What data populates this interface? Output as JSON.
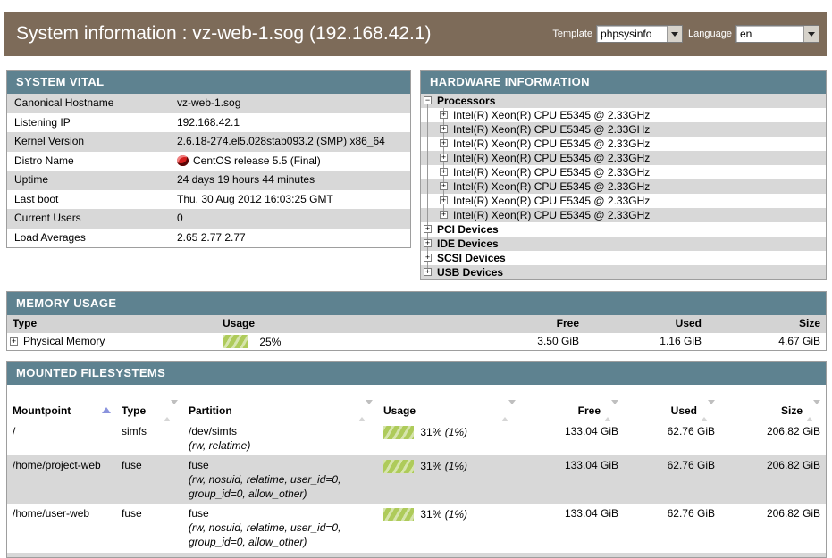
{
  "header": {
    "title": "System information : vz-web-1.sog (192.168.42.1)",
    "template_label": "Template",
    "template_value": "phpsysinfo",
    "language_label": "Language",
    "language_value": "en"
  },
  "system_vital": {
    "title": "SYSTEM VITAL",
    "rows": [
      {
        "label": "Canonical Hostname",
        "value": "vz-web-1.sog"
      },
      {
        "label": "Listening IP",
        "value": "192.168.42.1"
      },
      {
        "label": "Kernel Version",
        "value": "2.6.18-274.el5.028stab093.2 (SMP) x86_64"
      },
      {
        "label": "Distro Name",
        "value": "CentOS release 5.5 (Final)",
        "icon": "centos-icon"
      },
      {
        "label": "Uptime",
        "value": "24 days 19 hours 44 minutes"
      },
      {
        "label": "Last boot",
        "value": "Thu, 30 Aug 2012 16:03:25 GMT"
      },
      {
        "label": "Current Users",
        "value": "0"
      },
      {
        "label": "Load Averages",
        "value": "2.65 2.77 2.77"
      }
    ]
  },
  "hardware": {
    "title": "HARDWARE INFORMATION",
    "tree": [
      {
        "label": "Processors",
        "state": "expanded",
        "symbol": "−",
        "depth": 0
      },
      {
        "label": "Intel(R) Xeon(R) CPU E5345 @ 2.33GHz",
        "state": "collapsed",
        "symbol": "+",
        "depth": 1
      },
      {
        "label": "Intel(R) Xeon(R) CPU E5345 @ 2.33GHz",
        "state": "collapsed",
        "symbol": "+",
        "depth": 1
      },
      {
        "label": "Intel(R) Xeon(R) CPU E5345 @ 2.33GHz",
        "state": "collapsed",
        "symbol": "+",
        "depth": 1
      },
      {
        "label": "Intel(R) Xeon(R) CPU E5345 @ 2.33GHz",
        "state": "collapsed",
        "symbol": "+",
        "depth": 1
      },
      {
        "label": "Intel(R) Xeon(R) CPU E5345 @ 2.33GHz",
        "state": "collapsed",
        "symbol": "+",
        "depth": 1
      },
      {
        "label": "Intel(R) Xeon(R) CPU E5345 @ 2.33GHz",
        "state": "collapsed",
        "symbol": "+",
        "depth": 1
      },
      {
        "label": "Intel(R) Xeon(R) CPU E5345 @ 2.33GHz",
        "state": "collapsed",
        "symbol": "+",
        "depth": 1
      },
      {
        "label": "Intel(R) Xeon(R) CPU E5345 @ 2.33GHz",
        "state": "collapsed",
        "symbol": "+",
        "depth": 1
      },
      {
        "label": "PCI Devices",
        "state": "collapsed",
        "symbol": "+",
        "depth": 0
      },
      {
        "label": "IDE Devices",
        "state": "collapsed",
        "symbol": "+",
        "depth": 0
      },
      {
        "label": "SCSI Devices",
        "state": "collapsed",
        "symbol": "+",
        "depth": 0
      },
      {
        "label": "USB Devices",
        "state": "collapsed",
        "symbol": "+",
        "depth": 0
      }
    ]
  },
  "memory": {
    "title": "MEMORY USAGE",
    "columns": {
      "type": "Type",
      "usage": "Usage",
      "free": "Free",
      "used": "Used",
      "size": "Size"
    },
    "rows": [
      {
        "type": "Physical Memory",
        "symbol": "+",
        "usage_percent": 25,
        "usage_label": "25%",
        "free": "3.50 GiB",
        "used": "1.16 GiB",
        "size": "4.67 GiB"
      }
    ]
  },
  "filesystems": {
    "title": "MOUNTED FILESYSTEMS",
    "columns": {
      "mountpoint": "Mountpoint",
      "type": "Type",
      "partition": "Partition",
      "usage": "Usage",
      "free": "Free",
      "used": "Used",
      "size": "Size"
    },
    "sort": {
      "column": "Mountpoint",
      "direction": "ascending"
    },
    "rows": [
      {
        "mountpoint": "/",
        "type": "simfs",
        "partition": "/dev/simfs",
        "options": "(rw, relatime)",
        "usage_percent": 31,
        "usage_label": "31%",
        "usage_sub": "(1%)",
        "free": "133.04 GiB",
        "used": "62.76 GiB",
        "size": "206.82 GiB"
      },
      {
        "mountpoint": "/home/project-web",
        "type": "fuse",
        "partition": "fuse",
        "options": "(rw, nosuid, relatime, user_id=0, group_id=0, allow_other)",
        "usage_percent": 31,
        "usage_label": "31%",
        "usage_sub": "(1%)",
        "free": "133.04 GiB",
        "used": "62.76 GiB",
        "size": "206.82 GiB"
      },
      {
        "mountpoint": "/home/user-web",
        "type": "fuse",
        "partition": "fuse",
        "options": "(rw, nosuid, relatime, user_id=0, group_id=0, allow_other)",
        "usage_percent": 31,
        "usage_label": "31%",
        "usage_sub": "(1%)",
        "free": "133.04 GiB",
        "used": "62.76 GiB",
        "size": "206.82 GiB"
      }
    ]
  },
  "colors": {
    "banner": "#7d6b59",
    "panel_header": "#5e8290",
    "row_alt": "#d8d8d8",
    "table_header": "#d3d3d3",
    "usage_bar": "#aecb5a",
    "sort_active": "#8a93dd"
  }
}
